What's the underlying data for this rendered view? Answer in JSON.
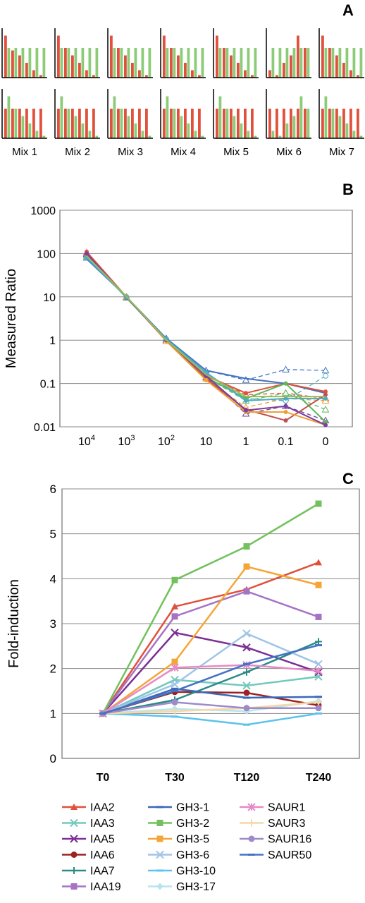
{
  "panels": {
    "a": "A",
    "b": "B",
    "c": "C"
  },
  "mix_labels": [
    "Mix 1",
    "Mix 2",
    "Mix 3",
    "Mix 4",
    "Mix 5",
    "Mix 6",
    "Mix 7"
  ],
  "colors": {
    "red": "#e0503c",
    "green": "#8ccc78"
  },
  "chart_data": [
    {
      "type": "bar",
      "panel": "A",
      "rows": [
        {
          "mixes": [
            {
              "red": [
                0.85,
                0.55,
                0.45,
                0.3,
                0.15,
                0.05
              ],
              "green": [
                0.6,
                0.6,
                0.6,
                0.6,
                0.6,
                0.6
              ]
            },
            {
              "red": [
                0.85,
                0.6,
                0.45,
                0.3,
                0.15,
                0.05
              ],
              "green": [
                0.6,
                0.6,
                0.6,
                0.6,
                0.6,
                0.6
              ]
            },
            {
              "red": [
                0.85,
                0.6,
                0.45,
                0.3,
                0.15,
                0.05
              ],
              "green": [
                0.6,
                0.6,
                0.6,
                0.6,
                0.6,
                0.6
              ]
            },
            {
              "red": [
                0.85,
                0.6,
                0.45,
                0.3,
                0.15,
                0.05
              ],
              "green": [
                0.6,
                0.6,
                0.6,
                0.6,
                0.6,
                0.6
              ]
            },
            {
              "red": [
                0.85,
                0.6,
                0.45,
                0.3,
                0.15,
                0.05
              ],
              "green": [
                0.6,
                0.6,
                0.6,
                0.6,
                0.6,
                0.6
              ]
            },
            {
              "red": [
                0.15,
                0.05,
                0.3,
                0.45,
                0.85,
                0.6
              ],
              "green": [
                0.6,
                0.6,
                0.6,
                0.6,
                0.6,
                0.6
              ]
            },
            {
              "red": [
                0.85,
                0.6,
                0.45,
                0.3,
                0.15,
                0.05
              ],
              "green": [
                0.6,
                0.6,
                0.6,
                0.6,
                0.6,
                0.6
              ]
            }
          ]
        },
        {
          "mixes": [
            {
              "red": [
                0.6,
                0.6,
                0.6,
                0.6,
                0.6,
                0.6
              ],
              "green": [
                0.85,
                0.6,
                0.45,
                0.3,
                0.15,
                0.05
              ]
            },
            {
              "red": [
                0.6,
                0.6,
                0.6,
                0.6,
                0.6,
                0.6
              ],
              "green": [
                0.85,
                0.6,
                0.45,
                0.3,
                0.15,
                0.05
              ]
            },
            {
              "red": [
                0.6,
                0.6,
                0.6,
                0.6,
                0.6,
                0.6
              ],
              "green": [
                0.85,
                0.6,
                0.45,
                0.3,
                0.15,
                0.05
              ]
            },
            {
              "red": [
                0.6,
                0.6,
                0.6,
                0.6,
                0.6,
                0.6
              ],
              "green": [
                0.85,
                0.6,
                0.45,
                0.3,
                0.15,
                0.05
              ]
            },
            {
              "red": [
                0.6,
                0.6,
                0.6,
                0.6,
                0.6,
                0.6
              ],
              "green": [
                0.85,
                0.6,
                0.45,
                0.3,
                0.15,
                0.05
              ]
            },
            {
              "red": [
                0.6,
                0.6,
                0.6,
                0.6,
                0.6,
                0.6
              ],
              "green": [
                0.15,
                0.05,
                0.3,
                0.45,
                0.85,
                0.6
              ]
            },
            {
              "red": [
                0.6,
                0.6,
                0.6,
                0.6,
                0.6,
                0.6
              ],
              "green": [
                0.85,
                0.6,
                0.45,
                0.3,
                0.15,
                0.05
              ]
            }
          ]
        }
      ]
    },
    {
      "type": "line",
      "panel": "B",
      "ylabel": "Measured Ratio",
      "yscale": "log",
      "ylim": [
        0.01,
        1000
      ],
      "yticks": [
        "0.01",
        "0.1",
        "1",
        "10",
        "100",
        "1000"
      ],
      "categories": [
        "10^4",
        "10^3",
        "10^2",
        "10",
        "1",
        "0.1",
        "0"
      ],
      "grid": true,
      "solid_series": [
        {
          "color": "#4472c4",
          "marker": "none",
          "values": [
            75,
            10,
            1.1,
            0.2,
            0.13,
            0.1,
            0.06
          ]
        },
        {
          "color": "#e0503c",
          "marker": "circle",
          "values": [
            110,
            10,
            1.0,
            0.15,
            0.06,
            0.1,
            0.065
          ]
        },
        {
          "color": "#5cb85c",
          "marker": "circle",
          "values": [
            90,
            9.5,
            1.0,
            0.14,
            0.045,
            0.1,
            0.013
          ]
        },
        {
          "color": "#c0504d",
          "marker": "circle",
          "values": [
            95,
            9.8,
            1.05,
            0.13,
            0.025,
            0.014,
            0.055
          ]
        },
        {
          "color": "#f0a030",
          "marker": "circle",
          "values": [
            85,
            10,
            0.95,
            0.12,
            0.022,
            0.022,
            0.011
          ]
        },
        {
          "color": "#7a3fa0",
          "marker": "circle",
          "values": [
            100,
            9.7,
            1.0,
            0.15,
            0.024,
            0.03,
            0.011
          ]
        },
        {
          "color": "#4bacc6",
          "marker": "circle",
          "values": [
            80,
            9.9,
            1.05,
            0.18,
            0.04,
            0.045,
            0.045
          ]
        },
        {
          "color": "#9bbb59",
          "marker": "none",
          "values": [
            88,
            10.2,
            1.0,
            0.16,
            0.05,
            0.05,
            0.05
          ]
        }
      ],
      "dashed_series": [
        {
          "color": "#4472c4",
          "marker": "triangle",
          "values": [
            80,
            10,
            1.1,
            0.2,
            0.12,
            0.21,
            0.2
          ]
        },
        {
          "color": "#e0503c",
          "marker": "triangle",
          "values": [
            105,
            10,
            1.0,
            0.16,
            0.055,
            0.06,
            0.045
          ]
        },
        {
          "color": "#5cb85c",
          "marker": "triangle",
          "values": [
            92,
            9.6,
            1.0,
            0.14,
            0.04,
            0.06,
            0.025
          ]
        },
        {
          "color": "#7a3fa0",
          "marker": "triangle",
          "values": [
            98,
            9.8,
            1.0,
            0.14,
            0.02,
            0.03,
            0.014
          ]
        },
        {
          "color": "#f0a030",
          "marker": "triangle",
          "values": [
            86,
            10,
            0.95,
            0.13,
            0.028,
            0.045,
            0.04
          ]
        },
        {
          "color": "#4bacc6",
          "marker": "circle",
          "values": [
            82,
            9.9,
            1.05,
            0.17,
            0.045,
            0.04,
            0.15
          ]
        }
      ]
    },
    {
      "type": "line",
      "panel": "C",
      "ylabel": "Fold-induction",
      "ylim": [
        0,
        6
      ],
      "yticks": [
        "0",
        "1",
        "2",
        "3",
        "4",
        "5",
        "6"
      ],
      "categories": [
        "T0",
        "T30",
        "T120",
        "T240"
      ],
      "grid": true,
      "series": [
        {
          "name": "IAA2",
          "color": "#e0503c",
          "marker": "triangle",
          "values": [
            1,
            3.38,
            3.76,
            4.36
          ]
        },
        {
          "name": "IAA3",
          "color": "#72c9bc",
          "marker": "x",
          "values": [
            1,
            1.75,
            1.62,
            1.82
          ]
        },
        {
          "name": "IAA5",
          "color": "#7b2f93",
          "marker": "x",
          "values": [
            1,
            2.8,
            2.47,
            1.92
          ]
        },
        {
          "name": "IAA6",
          "color": "#9b2222",
          "marker": "circle",
          "values": [
            1,
            1.48,
            1.46,
            1.18
          ]
        },
        {
          "name": "IAA7",
          "color": "#2a8a84",
          "marker": "plus",
          "values": [
            1,
            1.3,
            1.92,
            2.6
          ]
        },
        {
          "name": "IAA19",
          "color": "#a673c4",
          "marker": "square",
          "values": [
            1,
            3.16,
            3.72,
            3.15
          ]
        },
        {
          "name": "GH3-1",
          "color": "#3a68b8",
          "marker": "dash",
          "values": [
            1,
            1.55,
            1.35,
            1.37
          ]
        },
        {
          "name": "GH3-2",
          "color": "#72c15d",
          "marker": "square",
          "values": [
            1,
            3.97,
            4.72,
            5.67
          ]
        },
        {
          "name": "GH3-5",
          "color": "#f5a535",
          "marker": "square",
          "values": [
            1,
            2.15,
            4.27,
            3.86
          ]
        },
        {
          "name": "GH3-6",
          "color": "#9fc4e8",
          "marker": "x",
          "values": [
            1,
            1.65,
            2.78,
            2.1
          ]
        },
        {
          "name": "GH3-10",
          "color": "#5bc3ec",
          "marker": "dash",
          "values": [
            1,
            0.93,
            0.75,
            1.0
          ]
        },
        {
          "name": "GH3-17",
          "color": "#b8e4ee",
          "marker": "diamond",
          "values": [
            1,
            1.1,
            1.05,
            1.27
          ]
        },
        {
          "name": "SAUR1",
          "color": "#e58ac8",
          "marker": "asterisk",
          "values": [
            1,
            2.02,
            2.08,
            1.95
          ]
        },
        {
          "name": "SAUR3",
          "color": "#f5d7a8",
          "marker": "plus",
          "values": [
            1,
            1.05,
            1.12,
            1.25
          ]
        },
        {
          "name": "SAUR16",
          "color": "#9e8ac8",
          "marker": "circle",
          "values": [
            1,
            1.25,
            1.12,
            1.12
          ]
        },
        {
          "name": "SAUR50",
          "color": "#4472c4",
          "marker": "dash",
          "values": [
            1,
            1.5,
            2.1,
            2.52
          ]
        }
      ]
    }
  ]
}
